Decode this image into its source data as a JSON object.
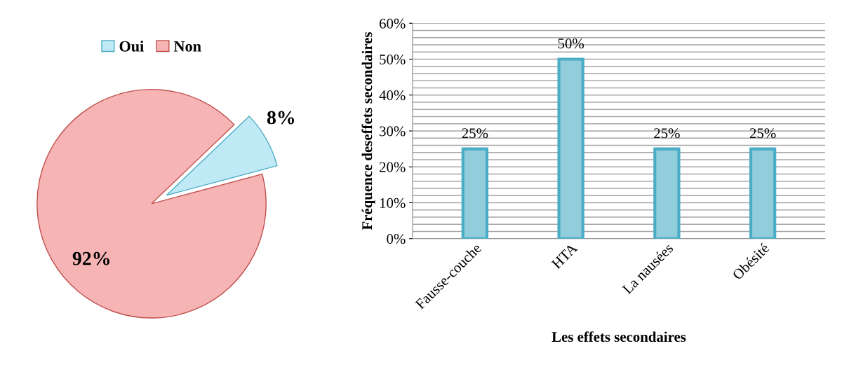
{
  "chart_data": [
    {
      "type": "pie",
      "categories": [
        "Oui",
        "Non"
      ],
      "values": [
        8,
        92
      ],
      "colors": [
        "#bfe9f5",
        "#f7b4b4"
      ],
      "value_labels": [
        "8%",
        "92%"
      ],
      "legend": "top"
    },
    {
      "type": "bar",
      "categories": [
        "Fausse-couche",
        "HTA",
        "La nausées",
        "Obésité"
      ],
      "values": [
        25,
        50,
        25,
        25
      ],
      "color": "#92cddc",
      "value_labels": [
        "25%",
        "50%",
        "25%",
        "25%"
      ],
      "xlabel": "Les effets secondaires",
      "ylabel": "Fréquence deseffets secondaires",
      "ylim": [
        0,
        60
      ],
      "yticks": [
        {
          "value": 0,
          "label": "0%"
        },
        {
          "value": 10,
          "label": "10%"
        },
        {
          "value": 20,
          "label": "20%"
        },
        {
          "value": 30,
          "label": "30%"
        },
        {
          "value": 40,
          "label": "40%"
        },
        {
          "value": 50,
          "label": "50%"
        },
        {
          "value": 60,
          "label": "60%"
        }
      ],
      "grid": true
    }
  ]
}
